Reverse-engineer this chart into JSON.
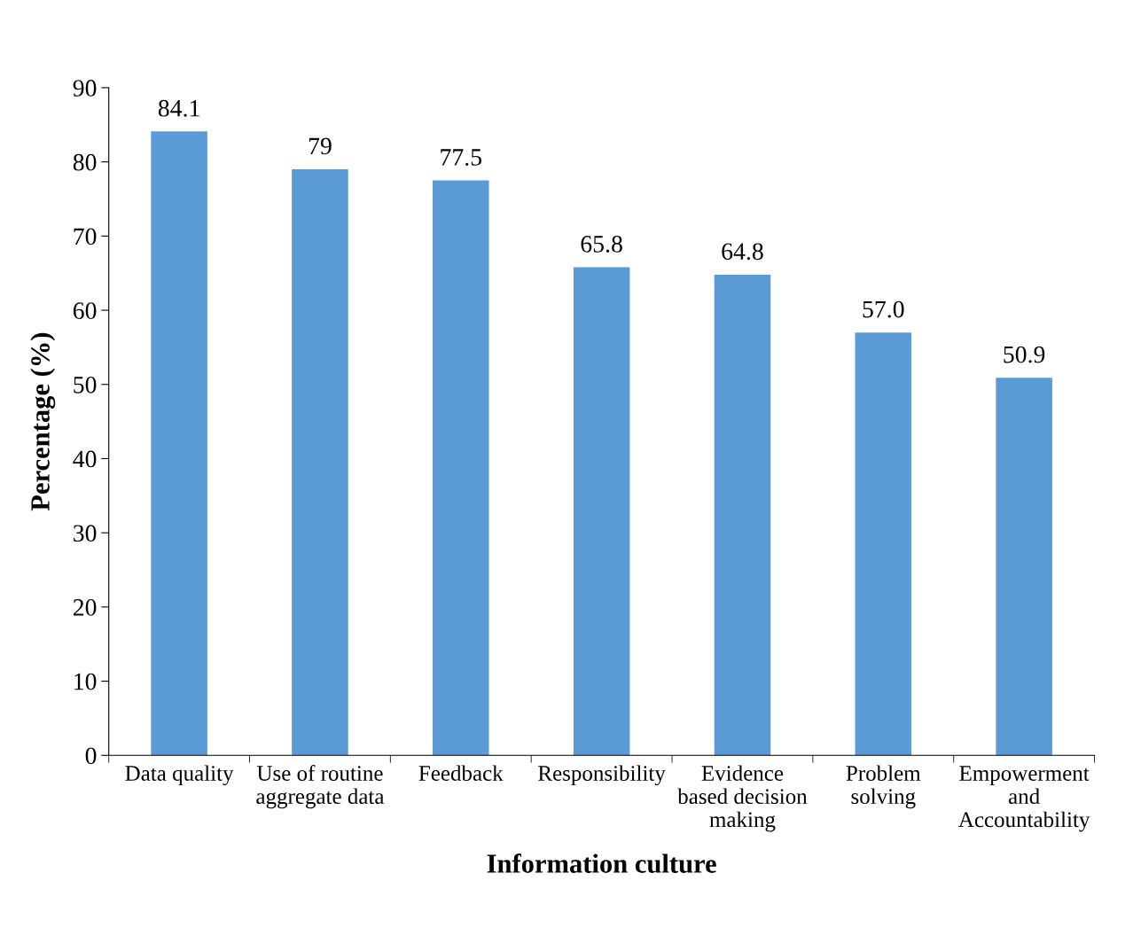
{
  "chart_data": {
    "type": "bar",
    "xlabel": "Information culture",
    "ylabel": "Percentage (%)",
    "categories": [
      "Data quality",
      "Use of routine\naggregate data",
      "Feedback",
      "Responsibility",
      "Evidence\nbased decision\nmaking",
      "Problem\nsolving",
      "Empowerment\nand\nAccountability"
    ],
    "values": [
      84.1,
      79,
      77.5,
      65.8,
      64.8,
      57.0,
      50.9
    ],
    "value_labels": [
      "84.1",
      "79",
      "77.5",
      "65.8",
      "64.8",
      "57.0",
      "50.9"
    ],
    "color": "#5b9bd5",
    "ylim": [
      0,
      90
    ],
    "yticks": [
      0,
      10,
      20,
      30,
      40,
      50,
      60,
      70,
      80,
      90
    ],
    "grid": false,
    "legend": false
  }
}
